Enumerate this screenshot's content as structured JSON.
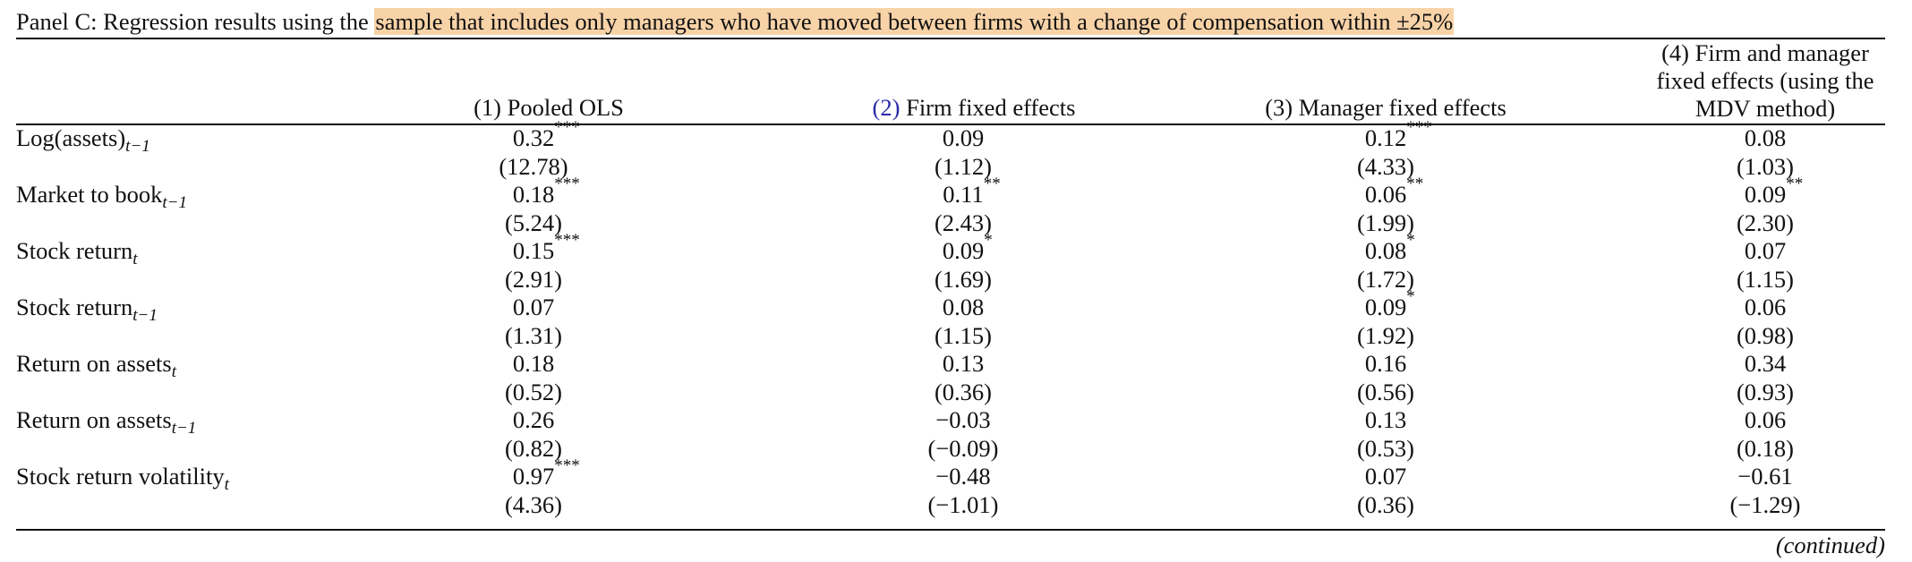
{
  "panel": {
    "prefix": "Panel C: Regression results using the ",
    "highlighted": "sample that includes only managers who have moved between firms with a change of compensation within ±25%",
    "highlight_color": "#f8d3a8"
  },
  "columns": [
    {
      "label": "(1) Pooled OLS"
    },
    {
      "label_num": "(2)",
      "label_rest": " Firm fixed effects"
    },
    {
      "label": "(3) Manager fixed effects"
    },
    {
      "label": "(4) Firm and manager fixed effects (using the MDV method)"
    }
  ],
  "rows": [
    {
      "label": "Log(assets)",
      "sub": "t−1",
      "coef": [
        {
          "v": "0.32",
          "s": "***"
        },
        {
          "v": "0.09",
          "s": ""
        },
        {
          "v": "0.12",
          "s": "***"
        },
        {
          "v": "0.08",
          "s": ""
        }
      ],
      "tstat": [
        "(12.78)",
        "(1.12)",
        "(4.33)",
        "(1.03)"
      ]
    },
    {
      "label": "Market to book",
      "sub": "t−1",
      "coef": [
        {
          "v": "0.18",
          "s": "***"
        },
        {
          "v": "0.11",
          "s": "**"
        },
        {
          "v": "0.06",
          "s": "**"
        },
        {
          "v": "0.09",
          "s": "**"
        }
      ],
      "tstat": [
        "(5.24)",
        "(2.43)",
        "(1.99)",
        "(2.30)"
      ]
    },
    {
      "label": "Stock return",
      "sub": "t",
      "coef": [
        {
          "v": "0.15",
          "s": "***"
        },
        {
          "v": "0.09",
          "s": "*"
        },
        {
          "v": "0.08",
          "s": "*"
        },
        {
          "v": "0.07",
          "s": ""
        }
      ],
      "tstat": [
        "(2.91)",
        "(1.69)",
        "(1.72)",
        "(1.15)"
      ]
    },
    {
      "label": "Stock return",
      "sub": "t−1",
      "coef": [
        {
          "v": "0.07",
          "s": ""
        },
        {
          "v": "0.08",
          "s": ""
        },
        {
          "v": "0.09",
          "s": "*"
        },
        {
          "v": "0.06",
          "s": ""
        }
      ],
      "tstat": [
        "(1.31)",
        "(1.15)",
        "(1.92)",
        "(0.98)"
      ]
    },
    {
      "label": "Return on assets",
      "sub": "t",
      "coef": [
        {
          "v": "0.18",
          "s": ""
        },
        {
          "v": "0.13",
          "s": ""
        },
        {
          "v": "0.16",
          "s": ""
        },
        {
          "v": "0.34",
          "s": ""
        }
      ],
      "tstat": [
        "(0.52)",
        "(0.36)",
        "(0.56)",
        "(0.93)"
      ]
    },
    {
      "label": "Return on assets",
      "sub": "t−1",
      "coef": [
        {
          "v": "0.26",
          "s": ""
        },
        {
          "v": "−0.03",
          "s": ""
        },
        {
          "v": "0.13",
          "s": ""
        },
        {
          "v": "0.06",
          "s": ""
        }
      ],
      "tstat": [
        "(0.82)",
        "(−0.09)",
        "(0.53)",
        "(0.18)"
      ]
    },
    {
      "label": "Stock return volatility",
      "sub": "t",
      "coef": [
        {
          "v": "0.97",
          "s": "***"
        },
        {
          "v": "−0.48",
          "s": ""
        },
        {
          "v": "0.07",
          "s": ""
        },
        {
          "v": "−0.61",
          "s": ""
        }
      ],
      "tstat": [
        "(4.36)",
        "(−1.01)",
        "(0.36)",
        "(−1.29)"
      ]
    }
  ],
  "footer": {
    "continued": "(continued)"
  }
}
